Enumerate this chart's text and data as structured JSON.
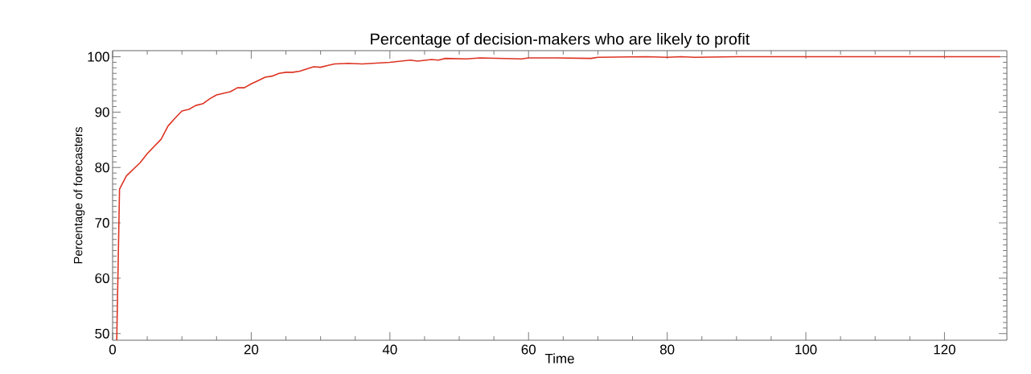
{
  "chart_data": {
    "type": "line",
    "title": "Percentage of decision-makers who are likely to profit",
    "xlabel": "Time",
    "ylabel": "Percentage of forecasters",
    "x": [
      0.6,
      1,
      2,
      4,
      5,
      7,
      8,
      9,
      10,
      11,
      12,
      13,
      14,
      15,
      16,
      17,
      18,
      19,
      20,
      21,
      22,
      23,
      24,
      25,
      26,
      27,
      28,
      29,
      30,
      31,
      32,
      34,
      36,
      40,
      43,
      44,
      46,
      47,
      48,
      51,
      53,
      59,
      60,
      64,
      69,
      70,
      77,
      80,
      82,
      84,
      90,
      100,
      110,
      128
    ],
    "values": [
      48.8,
      76.1,
      78.5,
      80.9,
      82.5,
      85.1,
      87.5,
      88.9,
      90.2,
      90.5,
      91.2,
      91.5,
      92.4,
      93.1,
      93.4,
      93.7,
      94.4,
      94.4,
      95.1,
      95.7,
      96.3,
      96.5,
      97.0,
      97.2,
      97.2,
      97.4,
      97.8,
      98.2,
      98.1,
      98.4,
      98.7,
      98.8,
      98.7,
      99.0,
      99.4,
      99.2,
      99.5,
      99.4,
      99.7,
      99.6,
      99.8,
      99.6,
      99.8,
      99.8,
      99.7,
      99.9,
      100,
      99.9,
      100,
      99.9,
      100,
      100,
      100,
      100
    ],
    "color": "#dd3322",
    "xlim": [
      0,
      129
    ],
    "ylim": [
      48.8,
      101.1
    ],
    "xticks": [
      0,
      20,
      40,
      60,
      80,
      100,
      120
    ],
    "yticks": [
      50,
      60,
      70,
      80,
      90,
      100
    ]
  }
}
